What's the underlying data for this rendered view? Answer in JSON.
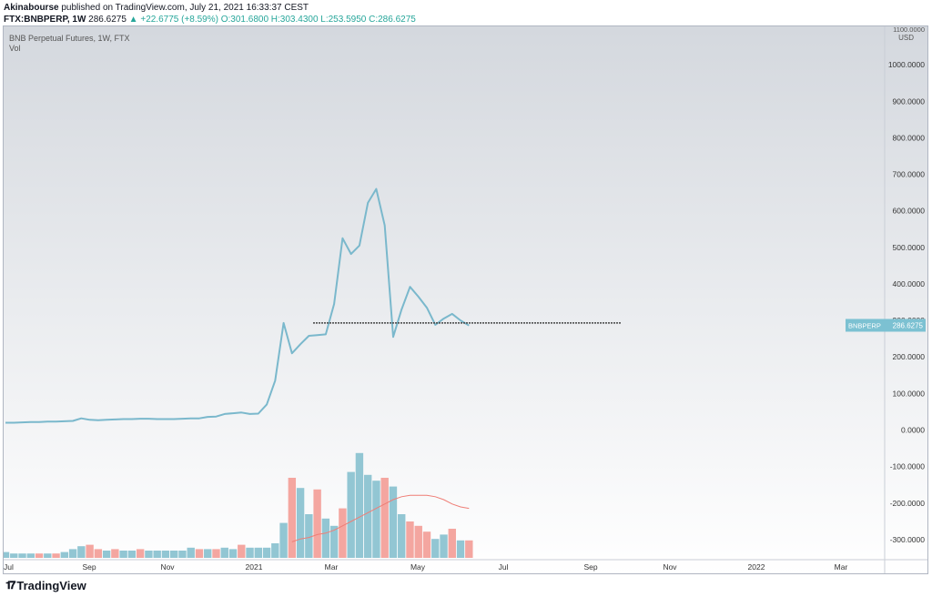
{
  "header": {
    "author": "Akinabourse",
    "published_text": "published on TradingView.com, July 21, 2021 16:33:37 CEST",
    "symbol": "FTX:BNBPERP, 1W",
    "price": "286.6275",
    "change": "▲ +22.6775 (+8.59%)",
    "ohlc": "O:301.6800 H:303.4300 L:253.5950 C:286.6275"
  },
  "footer": {
    "brand": "TradingView",
    "icon": "tradingview-logo-icon"
  },
  "colors": {
    "line": "#7ab8cc",
    "vol_up": "#92c6d3",
    "vol_down": "#f4a6a0",
    "ma": "#ef7d75",
    "price_tag": "#7cc1d2",
    "bg_top": "#d4d8de",
    "bg_bottom": "#ffffff",
    "level_line": "#444444"
  },
  "chart_data": {
    "type": "line",
    "title": "BNB Perpetual Futures, 1W, FTX",
    "indicator": "Vol",
    "currency_label": "USD",
    "y_axis_top_label": "1100.0000",
    "ylim": [
      -350,
      1100
    ],
    "y_ticks": [
      "1000.0000",
      "900.0000",
      "800.0000",
      "700.0000",
      "600.0000",
      "500.0000",
      "400.0000",
      "300.0000",
      "200.0000",
      "100.0000",
      "0.0000",
      "-100.0000",
      "-200.0000",
      "-300.0000"
    ],
    "x_tick_labels": [
      "Jul",
      "Sep",
      "Nov",
      "2021",
      "Mar",
      "May",
      "Jul",
      "Sep",
      "Nov",
      "2022",
      "Mar"
    ],
    "price_label": {
      "name": "BNBPERP",
      "value": "286.6275"
    },
    "level": {
      "value": 293,
      "from_week": 41,
      "to_week": 86
    },
    "series": [
      {
        "values": [
          20,
          20,
          21,
          22,
          22,
          23,
          23,
          24,
          25,
          32,
          28,
          27,
          28,
          29,
          30,
          30,
          31,
          31,
          30,
          30,
          30,
          31,
          32,
          32,
          36,
          37,
          44,
          46,
          48,
          44,
          45,
          70,
          135,
          293,
          210,
          235,
          258,
          260,
          262,
          345,
          525,
          482,
          505,
          622,
          660,
          560,
          255,
          330,
          392,
          365,
          335,
          288,
          305,
          318,
          300,
          286
        ]
      }
    ],
    "volume": {
      "up": [
        true,
        true,
        true,
        true,
        false,
        true,
        false,
        true,
        true,
        true,
        false,
        false,
        true,
        false,
        true,
        true,
        false,
        true,
        true,
        true,
        true,
        true,
        true,
        false,
        true,
        false,
        true,
        true,
        false,
        true,
        true,
        true,
        true,
        true,
        false,
        true,
        true,
        false,
        true,
        true,
        false,
        true,
        true,
        true,
        true,
        false,
        true,
        true,
        false,
        false,
        false,
        true,
        true,
        false,
        true,
        false
      ],
      "values": [
        4,
        3,
        3,
        3,
        3,
        3,
        3,
        4,
        6,
        8,
        9,
        6,
        5,
        6,
        5,
        5,
        6,
        5,
        5,
        5,
        5,
        5,
        7,
        6,
        6,
        6,
        7,
        6,
        9,
        7,
        7,
        7,
        10,
        24,
        55,
        48,
        30,
        47,
        27,
        22,
        34,
        59,
        72,
        57,
        53,
        55,
        49,
        30,
        25,
        22,
        18,
        13,
        16,
        20,
        12,
        12
      ],
      "ma": [
        null,
        null,
        null,
        null,
        null,
        null,
        null,
        null,
        null,
        null,
        null,
        null,
        null,
        null,
        null,
        null,
        null,
        null,
        null,
        null,
        null,
        null,
        null,
        null,
        null,
        null,
        null,
        null,
        null,
        null,
        null,
        null,
        null,
        null,
        11,
        13,
        14,
        16,
        17,
        19,
        22,
        25,
        28,
        31,
        34,
        37,
        40,
        42,
        43,
        43,
        43,
        42,
        40,
        37,
        35,
        34
      ],
      "max": 100
    }
  }
}
